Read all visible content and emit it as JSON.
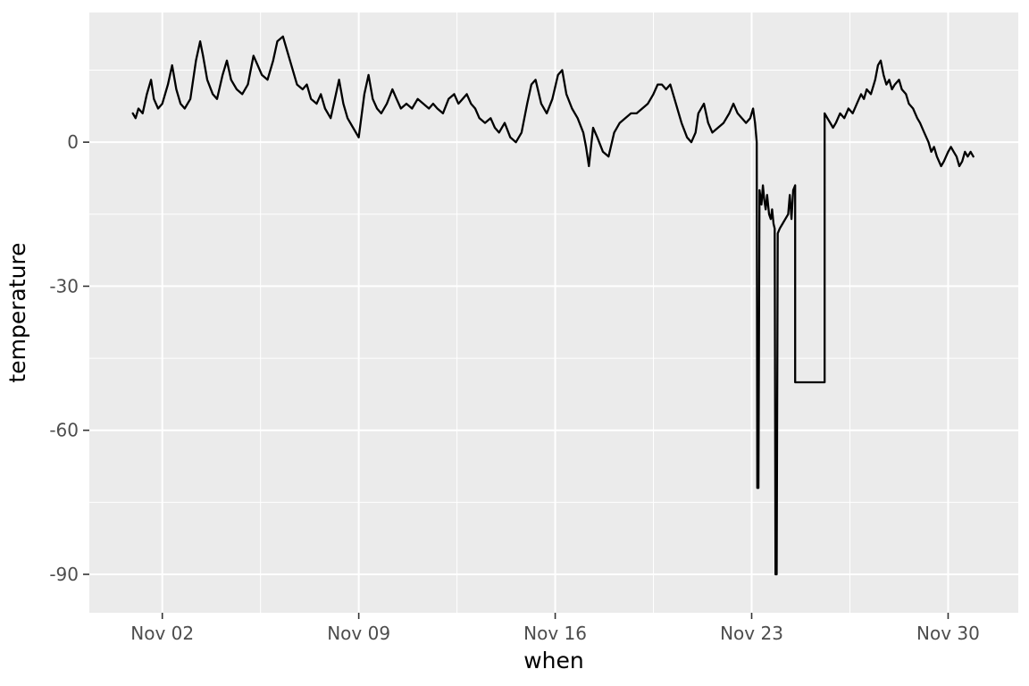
{
  "figure": {
    "background": "#FFFFFF",
    "panel_background": "#EBEBEB",
    "grid_major_color": "#FFFFFF",
    "grid_minor_color": "#FFFFFF",
    "tick_color": "#333333",
    "tick_label_color": "#4D4D4D",
    "axis_title_color": "#000000"
  },
  "chart_data": {
    "type": "line",
    "title": "",
    "xlabel": "when",
    "ylabel": "temperature",
    "x_description": "day of November (1 = Nov 01)",
    "xlim": [
      -0.6,
      32.5
    ],
    "ylim": [
      -98,
      27
    ],
    "grid": true,
    "legend": "none",
    "line_color": "#000000",
    "line_width": 2.3,
    "x_ticks": [
      {
        "value": 2,
        "label": "Nov 02"
      },
      {
        "value": 9,
        "label": "Nov 09"
      },
      {
        "value": 16,
        "label": "Nov 16"
      },
      {
        "value": 23,
        "label": "Nov 23"
      },
      {
        "value": 30,
        "label": "Nov 30"
      }
    ],
    "y_ticks": [
      {
        "value": 0,
        "label": "0"
      },
      {
        "value": -30,
        "label": "-30"
      },
      {
        "value": -60,
        "label": "-60"
      },
      {
        "value": -90,
        "label": "-90"
      }
    ],
    "x_minor": [
      5.5,
      12.5,
      19.5,
      26.5
    ],
    "y_minor": [
      15,
      -15,
      -45,
      -75
    ],
    "series": [
      {
        "name": "temperature",
        "points": [
          [
            0.95,
            6
          ],
          [
            1.05,
            5
          ],
          [
            1.15,
            7
          ],
          [
            1.3,
            6
          ],
          [
            1.45,
            10
          ],
          [
            1.6,
            13
          ],
          [
            1.7,
            9
          ],
          [
            1.85,
            7
          ],
          [
            2.0,
            8
          ],
          [
            2.2,
            12
          ],
          [
            2.35,
            16
          ],
          [
            2.5,
            11
          ],
          [
            2.65,
            8
          ],
          [
            2.8,
            7
          ],
          [
            3.0,
            9
          ],
          [
            3.2,
            17
          ],
          [
            3.35,
            21
          ],
          [
            3.45,
            18
          ],
          [
            3.6,
            13
          ],
          [
            3.8,
            10
          ],
          [
            3.95,
            9
          ],
          [
            4.15,
            14
          ],
          [
            4.3,
            17
          ],
          [
            4.45,
            13
          ],
          [
            4.65,
            11
          ],
          [
            4.85,
            10
          ],
          [
            5.05,
            12
          ],
          [
            5.25,
            18
          ],
          [
            5.4,
            16
          ],
          [
            5.55,
            14
          ],
          [
            5.75,
            13
          ],
          [
            5.95,
            17
          ],
          [
            6.1,
            21
          ],
          [
            6.3,
            22
          ],
          [
            6.45,
            19
          ],
          [
            6.6,
            16
          ],
          [
            6.8,
            12
          ],
          [
            7.0,
            11
          ],
          [
            7.15,
            12
          ],
          [
            7.3,
            9
          ],
          [
            7.5,
            8
          ],
          [
            7.65,
            10
          ],
          [
            7.8,
            7
          ],
          [
            8.0,
            5
          ],
          [
            8.15,
            9
          ],
          [
            8.3,
            13
          ],
          [
            8.45,
            8
          ],
          [
            8.6,
            5
          ],
          [
            8.8,
            3
          ],
          [
            9.0,
            1
          ],
          [
            9.2,
            10
          ],
          [
            9.35,
            14
          ],
          [
            9.5,
            9
          ],
          [
            9.65,
            7
          ],
          [
            9.8,
            6
          ],
          [
            10.0,
            8
          ],
          [
            10.2,
            11
          ],
          [
            10.35,
            9
          ],
          [
            10.5,
            7
          ],
          [
            10.7,
            8
          ],
          [
            10.9,
            7
          ],
          [
            11.1,
            9
          ],
          [
            11.3,
            8
          ],
          [
            11.5,
            7
          ],
          [
            11.65,
            8
          ],
          [
            11.8,
            7
          ],
          [
            12.0,
            6
          ],
          [
            12.2,
            9
          ],
          [
            12.4,
            10
          ],
          [
            12.55,
            8
          ],
          [
            12.7,
            9
          ],
          [
            12.85,
            10
          ],
          [
            13.0,
            8
          ],
          [
            13.15,
            7
          ],
          [
            13.3,
            5
          ],
          [
            13.5,
            4
          ],
          [
            13.7,
            5
          ],
          [
            13.85,
            3
          ],
          [
            14.0,
            2
          ],
          [
            14.2,
            4
          ],
          [
            14.4,
            1
          ],
          [
            14.6,
            0
          ],
          [
            14.8,
            2
          ],
          [
            15.0,
            8
          ],
          [
            15.15,
            12
          ],
          [
            15.3,
            13
          ],
          [
            15.5,
            8
          ],
          [
            15.7,
            6
          ],
          [
            15.9,
            9
          ],
          [
            16.1,
            14
          ],
          [
            16.25,
            15
          ],
          [
            16.4,
            10
          ],
          [
            16.6,
            7
          ],
          [
            16.8,
            5
          ],
          [
            17.0,
            2
          ],
          [
            17.1,
            -1
          ],
          [
            17.2,
            -5
          ],
          [
            17.35,
            3
          ],
          [
            17.5,
            1
          ],
          [
            17.7,
            -2
          ],
          [
            17.9,
            -3
          ],
          [
            18.1,
            2
          ],
          [
            18.3,
            4
          ],
          [
            18.5,
            5
          ],
          [
            18.7,
            6
          ],
          [
            18.9,
            6
          ],
          [
            19.1,
            7
          ],
          [
            19.3,
            8
          ],
          [
            19.5,
            10
          ],
          [
            19.65,
            12
          ],
          [
            19.8,
            12
          ],
          [
            19.95,
            11
          ],
          [
            20.1,
            12
          ],
          [
            20.3,
            8
          ],
          [
            20.5,
            4
          ],
          [
            20.7,
            1
          ],
          [
            20.85,
            0
          ],
          [
            21.0,
            2
          ],
          [
            21.1,
            6
          ],
          [
            21.3,
            8
          ],
          [
            21.45,
            4
          ],
          [
            21.6,
            2
          ],
          [
            21.8,
            3
          ],
          [
            22.0,
            4
          ],
          [
            22.2,
            6
          ],
          [
            22.35,
            8
          ],
          [
            22.5,
            6
          ],
          [
            22.65,
            5
          ],
          [
            22.8,
            4
          ],
          [
            22.95,
            5
          ],
          [
            23.05,
            7
          ],
          [
            23.12,
            4
          ],
          [
            23.18,
            0
          ],
          [
            23.2,
            -72
          ],
          [
            23.24,
            -72
          ],
          [
            23.28,
            -10
          ],
          [
            23.35,
            -13
          ],
          [
            23.4,
            -9
          ],
          [
            23.45,
            -12
          ],
          [
            23.5,
            -14
          ],
          [
            23.55,
            -11
          ],
          [
            23.62,
            -15
          ],
          [
            23.68,
            -16
          ],
          [
            23.73,
            -14
          ],
          [
            23.78,
            -17
          ],
          [
            23.82,
            -18
          ],
          [
            23.85,
            -90
          ],
          [
            23.89,
            -90
          ],
          [
            23.93,
            -19
          ],
          [
            24.0,
            -18
          ],
          [
            24.1,
            -17
          ],
          [
            24.2,
            -16
          ],
          [
            24.3,
            -15
          ],
          [
            24.36,
            -11
          ],
          [
            24.42,
            -16
          ],
          [
            24.48,
            -10
          ],
          [
            24.55,
            -9
          ],
          [
            24.55,
            -50
          ],
          [
            25.6,
            -50
          ],
          [
            25.6,
            6
          ],
          [
            25.7,
            5
          ],
          [
            25.8,
            4
          ],
          [
            25.9,
            3
          ],
          [
            26.0,
            4
          ],
          [
            26.15,
            6
          ],
          [
            26.3,
            5
          ],
          [
            26.45,
            7
          ],
          [
            26.6,
            6
          ],
          [
            26.75,
            8
          ],
          [
            26.9,
            10
          ],
          [
            27.0,
            9
          ],
          [
            27.1,
            11
          ],
          [
            27.25,
            10
          ],
          [
            27.4,
            13
          ],
          [
            27.5,
            16
          ],
          [
            27.6,
            17
          ],
          [
            27.7,
            14
          ],
          [
            27.8,
            12
          ],
          [
            27.9,
            13
          ],
          [
            28.0,
            11
          ],
          [
            28.1,
            12
          ],
          [
            28.25,
            13
          ],
          [
            28.35,
            11
          ],
          [
            28.5,
            10
          ],
          [
            28.6,
            8
          ],
          [
            28.75,
            7
          ],
          [
            28.9,
            5
          ],
          [
            29.0,
            4
          ],
          [
            29.15,
            2
          ],
          [
            29.3,
            0
          ],
          [
            29.4,
            -2
          ],
          [
            29.5,
            -1
          ],
          [
            29.6,
            -3
          ],
          [
            29.75,
            -5
          ],
          [
            29.85,
            -4
          ],
          [
            30.0,
            -2
          ],
          [
            30.1,
            -1
          ],
          [
            30.2,
            -2
          ],
          [
            30.3,
            -3
          ],
          [
            30.4,
            -5
          ],
          [
            30.5,
            -4
          ],
          [
            30.6,
            -2
          ],
          [
            30.7,
            -3
          ],
          [
            30.8,
            -2
          ],
          [
            30.9,
            -3
          ]
        ]
      }
    ]
  }
}
